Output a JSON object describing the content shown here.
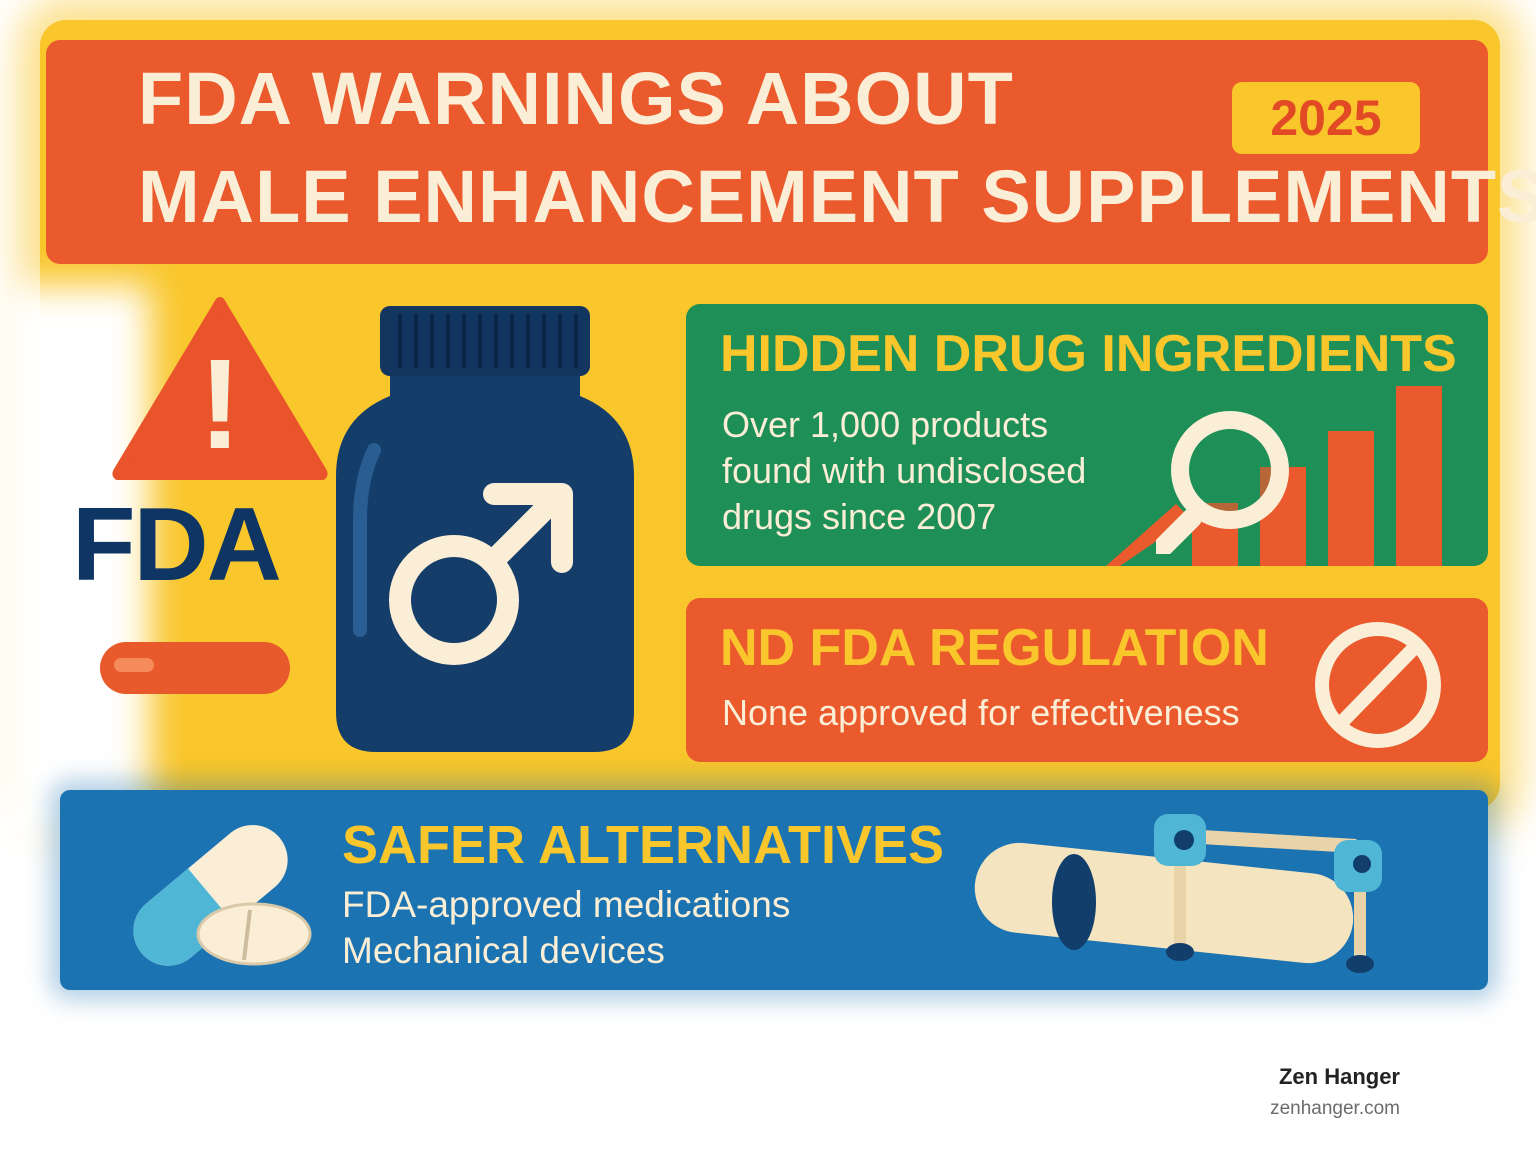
{
  "title": {
    "line1": "FDA WARNINGS ABOUT",
    "line2": "MALE ENHANCEMENT SUPPLEMENTS",
    "year": "2025"
  },
  "left_graphic": {
    "logo_text": "FDA",
    "warning_mark": "!",
    "bottle_symbol": "♂"
  },
  "hidden_drugs": {
    "heading": "HIDDEN DRUG INGREDIENTS",
    "lines": [
      "Over 1,000 products",
      "found with undisclosed",
      "drugs since 2007"
    ],
    "bars_relative": [
      0.35,
      0.55,
      0.75,
      1.0
    ],
    "icons": [
      "magnifier-icon",
      "bar-chart-icon"
    ]
  },
  "regulation": {
    "heading": "ND FDA REGULATION",
    "text": "None approved for effectiveness",
    "icon": "prohibited-icon"
  },
  "alternatives": {
    "heading": "SAFER ALTERNATIVES",
    "lines": [
      "FDA-approved medications",
      "Mechanical devices"
    ],
    "icons": [
      "pills-icon",
      "traction-device-icon"
    ]
  },
  "brand": {
    "name": "Zen Hanger",
    "url": "zenhanger.com"
  },
  "colors": {
    "orange": "#ea5a2d",
    "yellow": "#f9c62b",
    "green": "#1e8f57",
    "blue": "#1c73b1",
    "navy": "#0e3563",
    "cream": "#fbeed6"
  }
}
